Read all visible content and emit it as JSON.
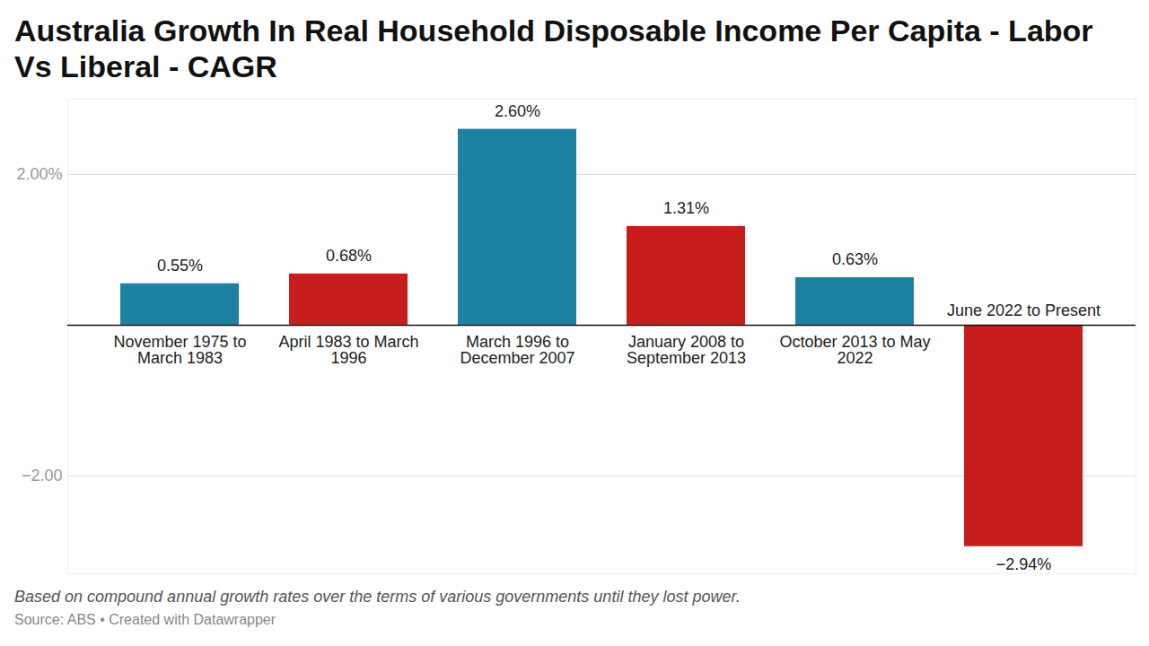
{
  "chart_data": {
    "type": "bar",
    "title": "Australia Growth In Real Household Disposable Income Per Capita - Labor Vs Liberal - CAGR",
    "caption": "Based on compound annual growth rates over the terms of various governments until they lost power.",
    "source": "Source: ABS • Created with Datawrapper",
    "categories": [
      "November 1975 to March 1983",
      "April 1983 to March 1996",
      "March 1996 to December 2007",
      "January 2008 to September 2013",
      "October 2013 to May 2022",
      "June 2022 to Present"
    ],
    "values": [
      0.55,
      0.68,
      2.6,
      1.31,
      0.63,
      -2.94
    ],
    "value_labels": [
      "0.55%",
      "0.68%",
      "2.60%",
      "1.31%",
      "0.63%",
      "−2.94%"
    ],
    "colors": [
      "#1d81a2",
      "#c71e1d",
      "#1d81a2",
      "#c71e1d",
      "#1d81a2",
      "#c71e1d"
    ],
    "ylim": [
      -3.3,
      3.0
    ],
    "yticks": [
      {
        "value": -2,
        "label": "−2.00"
      },
      {
        "value": 2,
        "label": "2.00%"
      }
    ],
    "grid": true,
    "data_labels": true
  }
}
